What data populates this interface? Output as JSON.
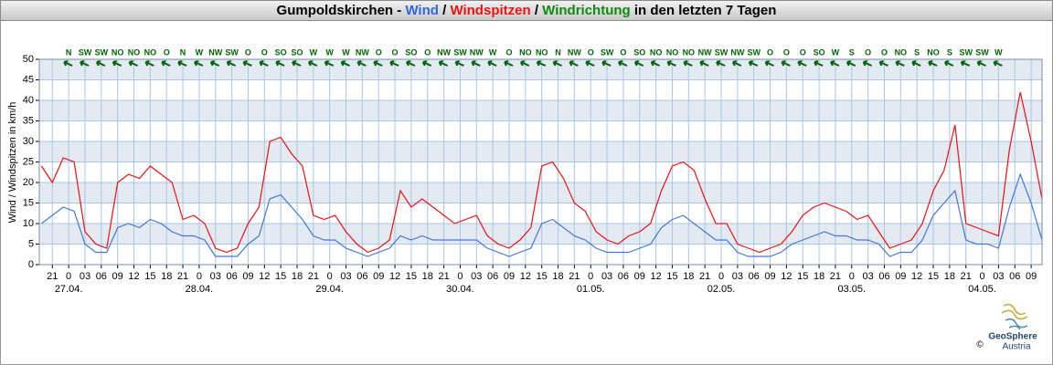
{
  "chart_data": {
    "type": "line",
    "title": [
      {
        "text": "Gumpoldskirchen - ",
        "color": "#000000"
      },
      {
        "text": "Wind",
        "color": "#3366dd"
      },
      {
        "text": " / ",
        "color": "#000000"
      },
      {
        "text": "Windspitzen",
        "color": "#ee1111"
      },
      {
        "text": " / ",
        "color": "#000000"
      },
      {
        "text": "Windrichtung",
        "color": "#118811"
      },
      {
        "text": " in den letzten 7 Tagen",
        "color": "#000000"
      }
    ],
    "y_label": "Wind / Windspitzen in km/h",
    "ylim": [
      0,
      50
    ],
    "yticks": [
      0,
      5,
      10,
      15,
      20,
      25,
      30,
      35,
      40,
      45,
      50
    ],
    "xlim": [
      -5.4,
      179
    ],
    "xticks": [
      {
        "value": -3,
        "label": "21"
      },
      0,
      {
        "value": 3,
        "label": "03"
      },
      {
        "value": 6,
        "label": "06"
      },
      {
        "value": 9,
        "label": "09"
      },
      12,
      15,
      18,
      21,
      {
        "value": 24,
        "label": "0"
      },
      {
        "value": 27,
        "label": "03"
      },
      {
        "value": 30,
        "label": "06"
      },
      {
        "value": 33,
        "label": "09"
      },
      {
        "value": 36,
        "label": "12"
      },
      {
        "value": 39,
        "label": "15"
      },
      {
        "value": 42,
        "label": "18"
      },
      {
        "value": 45,
        "label": "21"
      },
      {
        "value": 48,
        "label": "0"
      },
      {
        "value": 51,
        "label": "03"
      },
      {
        "value": 54,
        "label": "06"
      },
      {
        "value": 57,
        "label": "09"
      },
      {
        "value": 60,
        "label": "12"
      },
      {
        "value": 63,
        "label": "15"
      },
      {
        "value": 66,
        "label": "18"
      },
      {
        "value": 69,
        "label": "21"
      },
      {
        "value": 72,
        "label": "0"
      },
      {
        "value": 75,
        "label": "03"
      },
      {
        "value": 78,
        "label": "06"
      },
      {
        "value": 81,
        "label": "09"
      },
      {
        "value": 84,
        "label": "12"
      },
      {
        "value": 87,
        "label": "15"
      },
      {
        "value": 90,
        "label": "18"
      },
      {
        "value": 93,
        "label": "21"
      },
      {
        "value": 96,
        "label": "0"
      },
      {
        "value": 99,
        "label": "03"
      },
      {
        "value": 102,
        "label": "06"
      },
      {
        "value": 105,
        "label": "09"
      },
      {
        "value": 108,
        "label": "12"
      },
      {
        "value": 111,
        "label": "15"
      },
      {
        "value": 114,
        "label": "18"
      },
      {
        "value": 117,
        "label": "21"
      },
      {
        "value": 120,
        "label": "0"
      },
      {
        "value": 123,
        "label": "03"
      },
      {
        "value": 126,
        "label": "06"
      },
      {
        "value": 129,
        "label": "09"
      },
      {
        "value": 132,
        "label": "12"
      },
      {
        "value": 135,
        "label": "15"
      },
      {
        "value": 138,
        "label": "18"
      },
      {
        "value": 141,
        "label": "21"
      },
      {
        "value": 144,
        "label": "0"
      },
      {
        "value": 147,
        "label": "03"
      },
      {
        "value": 150,
        "label": "06"
      },
      {
        "value": 153,
        "label": "09"
      },
      {
        "value": 156,
        "label": "12"
      },
      {
        "value": 159,
        "label": "15"
      },
      {
        "value": 162,
        "label": "18"
      },
      {
        "value": 165,
        "label": "21"
      },
      {
        "value": 168,
        "label": "0"
      },
      {
        "value": 171,
        "label": "03"
      },
      {
        "value": 174,
        "label": "06"
      },
      {
        "value": 177,
        "label": "09"
      }
    ],
    "date_ticks": [
      {
        "value": 0,
        "label": "27.04."
      },
      {
        "value": 24,
        "label": "28.04."
      },
      {
        "value": 48,
        "label": "29.04."
      },
      {
        "value": 72,
        "label": "30.04."
      },
      {
        "value": 96,
        "label": "01.05."
      },
      {
        "value": 120,
        "label": "02.05."
      },
      {
        "value": 144,
        "label": "03.05."
      },
      {
        "value": 168,
        "label": "04.05."
      }
    ],
    "grid": true,
    "band_color": "#e3eaf2",
    "x": [
      -5,
      -3,
      -1,
      1,
      3,
      5,
      7,
      9,
      11,
      13,
      15,
      17,
      19,
      21,
      23,
      25,
      27,
      29,
      31,
      33,
      35,
      37,
      39,
      41,
      43,
      45,
      47,
      49,
      51,
      53,
      55,
      57,
      59,
      61,
      63,
      65,
      67,
      69,
      71,
      73,
      75,
      77,
      79,
      81,
      83,
      85,
      87,
      89,
      91,
      93,
      95,
      97,
      99,
      101,
      103,
      105,
      107,
      109,
      111,
      113,
      115,
      117,
      119,
      121,
      123,
      125,
      127,
      129,
      131,
      133,
      135,
      137,
      139,
      141,
      143,
      145,
      147,
      149,
      151,
      153,
      155,
      157,
      159,
      161,
      163,
      165,
      167,
      169,
      171,
      173,
      175,
      177,
      179
    ],
    "series": [
      {
        "name": "Windspitzen",
        "color": "#ee1111",
        "values": [
          24,
          20,
          26,
          25,
          8,
          5,
          4,
          20,
          22,
          21,
          24,
          22,
          20,
          11,
          12,
          10,
          4,
          3,
          4,
          10,
          14,
          30,
          31,
          27,
          24,
          12,
          11,
          12,
          8,
          5,
          3,
          4,
          6,
          18,
          14,
          16,
          14,
          12,
          10,
          11,
          12,
          7,
          5,
          4,
          6,
          9,
          24,
          25,
          21,
          15,
          13,
          8,
          6,
          5,
          7,
          8,
          10,
          18,
          24,
          25,
          23,
          16,
          10,
          10,
          5,
          4,
          3,
          4,
          5,
          8,
          12,
          14,
          15,
          14,
          13,
          11,
          12,
          8,
          4,
          5,
          6,
          10,
          18,
          23,
          34,
          10,
          9,
          8,
          7,
          28,
          42,
          30,
          16
        ]
      },
      {
        "name": "Wind",
        "color": "#4477dd",
        "values": [
          10,
          12,
          14,
          13,
          5,
          3,
          3,
          9,
          10,
          9,
          11,
          10,
          8,
          7,
          7,
          6,
          2,
          2,
          2,
          5,
          7,
          16,
          17,
          14,
          11,
          7,
          6,
          6,
          4,
          3,
          2,
          3,
          4,
          7,
          6,
          7,
          6,
          6,
          6,
          6,
          6,
          4,
          3,
          2,
          3,
          4,
          10,
          11,
          9,
          7,
          6,
          4,
          3,
          3,
          3,
          4,
          5,
          9,
          11,
          12,
          10,
          8,
          6,
          6,
          3,
          2,
          2,
          2,
          3,
          5,
          6,
          7,
          8,
          7,
          7,
          6,
          6,
          5,
          2,
          3,
          3,
          6,
          12,
          15,
          18,
          6,
          5,
          5,
          4,
          14,
          22,
          15,
          6
        ]
      }
    ],
    "wind_direction": {
      "color": "#006400",
      "x": [
        0,
        3,
        6,
        9,
        12,
        15,
        18,
        21,
        24,
        27,
        30,
        33,
        36,
        39,
        42,
        45,
        48,
        51,
        54,
        57,
        60,
        63,
        66,
        69,
        72,
        75,
        78,
        81,
        84,
        87,
        90,
        93,
        96,
        99,
        102,
        105,
        108,
        111,
        114,
        117,
        120,
        123,
        126,
        129,
        132,
        135,
        138,
        141,
        144,
        147,
        150,
        153,
        156,
        159,
        162,
        165,
        168,
        171
      ],
      "labels": [
        "N",
        "SW",
        "SW",
        "NO",
        "NO",
        "NO",
        "O",
        "N",
        "W",
        "NW",
        "SW",
        "O",
        "O",
        "SO",
        "SO",
        "W",
        "W",
        "W",
        "NW",
        "O",
        "O",
        "SO",
        "O",
        "NW",
        "SW",
        "NW",
        "W",
        "O",
        "NO",
        "NO",
        "N",
        "NW",
        "O",
        "SW",
        "O",
        "SO",
        "NO",
        "NO",
        "NO",
        "NW",
        "SW",
        "NW",
        "SW",
        "O",
        "O",
        "O",
        "SO",
        "W",
        "S",
        "O",
        "O",
        "NO",
        "S",
        "NO",
        "S",
        "SW",
        "SW",
        "W"
      ]
    },
    "logo": {
      "name": "GeoSphere",
      "country": "Austria",
      "copyright": "©"
    }
  }
}
